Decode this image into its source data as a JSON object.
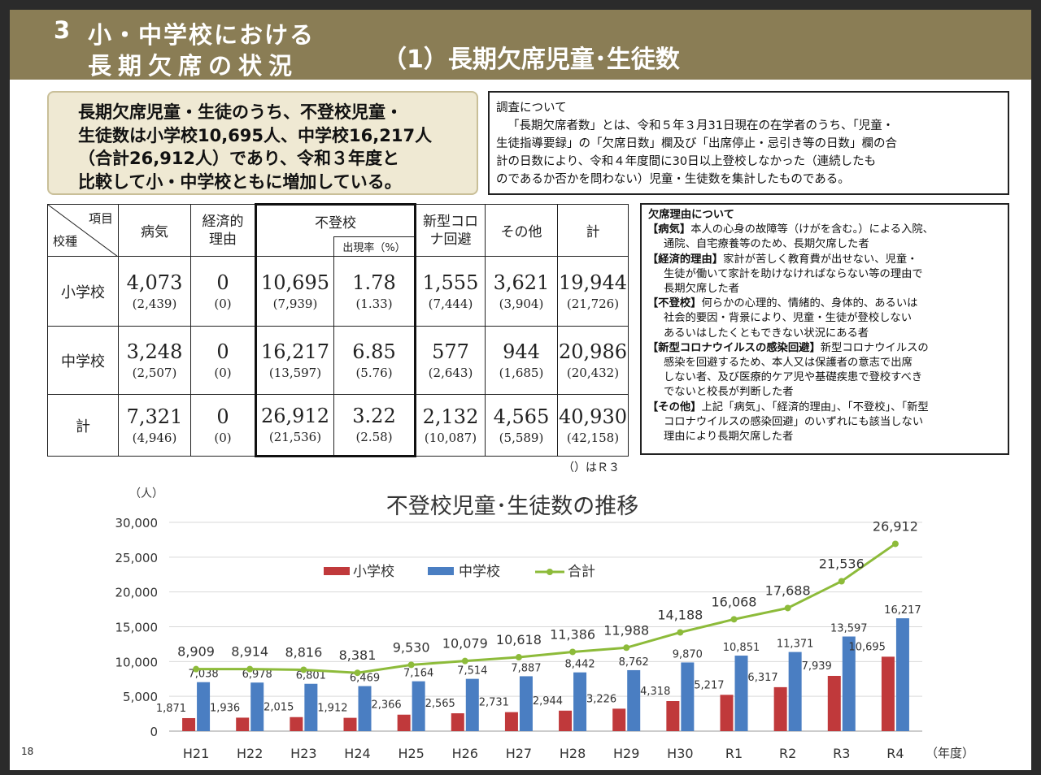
{
  "header": {
    "number": "3",
    "title_line1": "小・中学校における",
    "title_line2": "長期欠席の状況",
    "subtitle": "（1）長期欠席児童･生徒数"
  },
  "summary": {
    "lines": [
      "長期欠席児童・生徒のうち、不登校児童・",
      "生徒数は小学校10,695人、中学校16,217人",
      "（合計26,912人）であり、令和３年度と",
      "比較して小・中学校ともに増加している。"
    ]
  },
  "survey": {
    "title": "調査について",
    "lines": [
      "「長期欠席者数」とは、令和５年３月31日現在の在学者のうち、「児童・",
      "生徒指導要録」の「欠席日数」欄及び「出席停止・忌引き等の日数」欄の合",
      "計の日数により、令和４年度間に30日以上登校しなかった（連続したも",
      "のであるか否かを問わない）児童・生徒数を集計したものである。"
    ]
  },
  "table": {
    "corner_top": "項目",
    "corner_bottom": "校種",
    "headers": {
      "illness": "病気",
      "economic": "経済的\n理由",
      "futoko": "不登校",
      "rate": "出現率（%）",
      "covid": "新型コロ\nナ回避",
      "other": "その他",
      "total": "計"
    },
    "rows": [
      {
        "label": "小学校",
        "cells": [
          [
            "4,073",
            "(2,439)"
          ],
          [
            "0",
            "(0)"
          ],
          [
            "10,695",
            "(7,939)"
          ],
          [
            "1.78",
            "(1.33)"
          ],
          [
            "1,555",
            "(7,444)"
          ],
          [
            "3,621",
            "(3,904)"
          ],
          [
            "19,944",
            "(21,726)"
          ]
        ]
      },
      {
        "label": "中学校",
        "cells": [
          [
            "3,248",
            "(2,507)"
          ],
          [
            "0",
            "(0)"
          ],
          [
            "16,217",
            "(13,597)"
          ],
          [
            "6.85",
            "(5.76)"
          ],
          [
            "577",
            "(2,643)"
          ],
          [
            "944",
            "(1,685)"
          ],
          [
            "20,986",
            "(20,432)"
          ]
        ]
      },
      {
        "label": "計",
        "cells": [
          [
            "7,321",
            "(4,946)"
          ],
          [
            "0",
            "(0)"
          ],
          [
            "26,912",
            "(21,536)"
          ],
          [
            "3.22",
            "(2.58)"
          ],
          [
            "2,132",
            "(10,087)"
          ],
          [
            "4,565",
            "(5,589)"
          ],
          [
            "40,930",
            "(42,158)"
          ]
        ]
      }
    ],
    "note": "（）はＲ３"
  },
  "reasons": {
    "title": "欠席理由について",
    "items": [
      {
        "head": "【病気】",
        "lines": [
          "本人の心身の故障等（けがを含む。）による入院、",
          "通院、自宅療養等のため、長期欠席した者"
        ]
      },
      {
        "head": "【経済的理由】",
        "lines": [
          "家計が苦しく教育費が出せない、児童・",
          "生徒が働いて家計を助けなければならない等の理由で",
          "長期欠席した者"
        ]
      },
      {
        "head": "【不登校】",
        "lines": [
          "何らかの心理的、情緒的、身体的、あるいは",
          "社会的要因・背景により、児童・生徒が登校しない",
          "あるいはしたくともできない状況にある者"
        ]
      },
      {
        "head": "【新型コロナウイルスの感染回避】",
        "lines": [
          "新型コロナウイルスの",
          "感染を回避するため、本人又は保護者の意志で出席",
          "しない者、及び医療的ケア児や基礎疾患で登校すべき",
          "でないと校長が判断した者"
        ]
      },
      {
        "head": "【その他】",
        "lines": [
          "上記「病気」、「経済的理由」、「不登校」、「新型",
          "コロナウイルスの感染回避」のいずれにも該当しない",
          "理由により長期欠席した者"
        ]
      }
    ]
  },
  "page_number": "18",
  "colors": {
    "header_bg": "#8a7d55",
    "elementary": "#c0393b",
    "junior": "#4a7ec2",
    "total": "#8dbb3a"
  },
  "chart_data": {
    "type": "bar",
    "title": "不登校児童･生徒数の推移",
    "ylabel": "（人）",
    "xlabel": "（年度）",
    "categories": [
      "H21",
      "H22",
      "H23",
      "H24",
      "H25",
      "H26",
      "H27",
      "H28",
      "H29",
      "H30",
      "R1",
      "R2",
      "R3",
      "R4"
    ],
    "ylim": [
      0,
      30000
    ],
    "yticks": [
      "0",
      "5,000",
      "10,000",
      "15,000",
      "20,000",
      "25,000",
      "30,000"
    ],
    "grid": true,
    "legend": "top-center",
    "series": [
      {
        "name": "小学校",
        "kind": "bar",
        "values": [
          1871,
          1936,
          2015,
          1912,
          2366,
          2565,
          2731,
          2944,
          3226,
          4318,
          5217,
          6317,
          7939,
          10695
        ],
        "labels": [
          "1,871",
          "1,936",
          "2,015",
          "1,912",
          "2,366",
          "2,565",
          "2,731",
          "2,944",
          "3,226",
          "4,318",
          "5,217",
          "6,317",
          "7,939",
          "10,695"
        ]
      },
      {
        "name": "中学校",
        "kind": "bar",
        "values": [
          7038,
          6978,
          6801,
          6469,
          7164,
          7514,
          7887,
          8442,
          8762,
          9870,
          10851,
          11371,
          13597,
          16217
        ],
        "labels": [
          "7,038",
          "6,978",
          "6,801",
          "6,469",
          "7,164",
          "7,514",
          "7,887",
          "8,442",
          "8,762",
          "9,870",
          "10,851",
          "11,371",
          "13,597",
          "16,217"
        ]
      },
      {
        "name": "合計",
        "kind": "line",
        "values": [
          8909,
          8914,
          8816,
          8381,
          9530,
          10079,
          10618,
          11386,
          11988,
          14188,
          16068,
          17688,
          21536,
          26912
        ],
        "labels": [
          "8,909",
          "8,914",
          "8,816",
          "8,381",
          "9,530",
          "10,079",
          "10,618",
          "11,386",
          "11,988",
          "14,188",
          "16,068",
          "17,688",
          "21,536",
          "26,912"
        ]
      }
    ]
  }
}
